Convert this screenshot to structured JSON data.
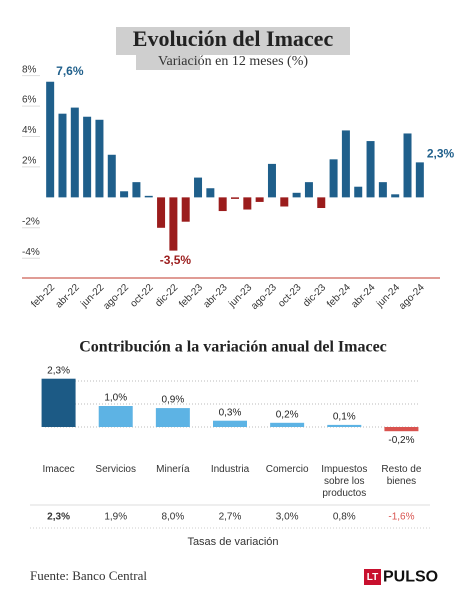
{
  "chart_data": [
    {
      "type": "bar",
      "title": "Evolución del Imacec",
      "subtitle": "Variación en 12 meses (%)",
      "categories": [
        "feb-22",
        null,
        "abr-22",
        null,
        "jun-22",
        null,
        "ago-22",
        null,
        "oct-22",
        null,
        "dic-22",
        null,
        "feb-23",
        null,
        "abr-23",
        null,
        "jun-23",
        null,
        "ago-23",
        null,
        "oct-23",
        null,
        "dic-23",
        null,
        "feb-24",
        null,
        "abr-24",
        null,
        "jun-24",
        null,
        "ago-24"
      ],
      "values": [
        7.6,
        5.5,
        5.9,
        5.3,
        5.1,
        2.8,
        0.4,
        1.0,
        0.1,
        -2.0,
        -3.5,
        -1.6,
        1.3,
        0.6,
        -0.9,
        -0.1,
        -0.8,
        -0.3,
        2.2,
        -0.6,
        0.3,
        1.0,
        -0.7,
        2.5,
        4.4,
        0.7,
        3.7,
        1.0,
        0.2,
        4.2,
        2.3
      ],
      "value_labels": [
        "7,6%",
        null,
        null,
        null,
        null,
        null,
        null,
        null,
        null,
        null,
        "-3,5%",
        null,
        null,
        null,
        null,
        null,
        null,
        null,
        null,
        null,
        null,
        null,
        null,
        null,
        null,
        null,
        null,
        null,
        null,
        null,
        "2,3%"
      ],
      "colors": {
        "positive": "#1f5f8b",
        "negative": "#9b1c1c"
      },
      "ylim": [
        -5.3,
        8.7
      ],
      "yticks": [
        {
          "value": 8,
          "label": "8%"
        },
        {
          "value": 6,
          "label": "6%"
        },
        {
          "value": 4,
          "label": "4%"
        },
        {
          "value": 2,
          "label": "2%"
        },
        {
          "value": -2,
          "label": "-2%"
        },
        {
          "value": -4,
          "label": "-4%"
        }
      ]
    },
    {
      "type": "bar",
      "title": "Contribución a la variación anual del Imacec",
      "categories": [
        "Imacec",
        "Servicios",
        "Minería",
        "Industria",
        "Comercio",
        "Impuestos sobre los productos",
        "Resto de bienes"
      ],
      "values": [
        2.3,
        1.0,
        0.9,
        0.3,
        0.2,
        0.1,
        -0.2
      ],
      "value_labels": [
        "2,3%",
        "1,0%",
        "0,9%",
        "0,3%",
        "0,2%",
        "0,1%",
        "-0,2%"
      ],
      "colors": [
        "#1c5a85",
        "#5db3e4",
        "#5db3e4",
        "#5db3e4",
        "#5db3e4",
        "#5db3e4",
        "#d9534f"
      ],
      "ylim": [
        -0.4,
        2.6
      ],
      "rates": [
        "2,3%",
        "1,9%",
        "8,0%",
        "2,7%",
        "3,0%",
        "0,8%",
        "-1,6%"
      ],
      "rates_label": "Tasas de variación"
    }
  ],
  "source": "Fuente: Banco Central",
  "logo": {
    "mark": "LT",
    "text": "PULSO"
  }
}
